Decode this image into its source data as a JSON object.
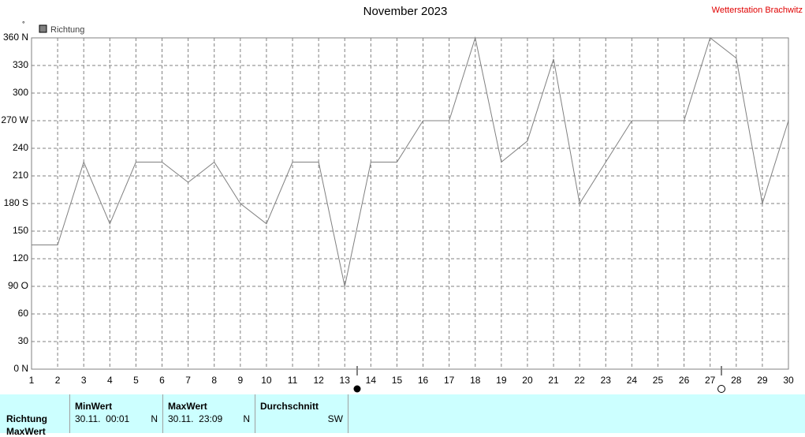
{
  "chart_data": {
    "type": "line",
    "title": "November 2023",
    "source": "Wetterstation Brachwitz",
    "y_unit": "°",
    "x": [
      1,
      2,
      3,
      4,
      5,
      6,
      7,
      8,
      9,
      10,
      11,
      12,
      13,
      14,
      15,
      16,
      17,
      18,
      19,
      20,
      21,
      22,
      23,
      24,
      25,
      26,
      27,
      28,
      29,
      30
    ],
    "series": [
      {
        "name": "Richtung",
        "color": "#808080",
        "values": [
          135,
          135,
          225,
          158,
          225,
          225,
          203,
          225,
          180,
          158,
          225,
          225,
          90,
          225,
          225,
          270,
          270,
          360,
          225,
          248,
          337,
          180,
          225,
          270,
          270,
          270,
          360,
          338,
          180,
          270
        ]
      }
    ],
    "xlim": [
      1,
      30
    ],
    "xticks": [
      1,
      2,
      3,
      4,
      5,
      6,
      7,
      8,
      9,
      10,
      11,
      12,
      13,
      14,
      15,
      16,
      17,
      18,
      19,
      20,
      21,
      22,
      23,
      24,
      25,
      26,
      27,
      28,
      29,
      30
    ],
    "ylim": [
      0,
      360
    ],
    "yticks": [
      {
        "value": 0,
        "label": "0 N"
      },
      30,
      60,
      {
        "value": 90,
        "label": "90 O"
      },
      120,
      150,
      {
        "value": 180,
        "label": "180 S"
      },
      210,
      240,
      {
        "value": 270,
        "label": "270 W"
      },
      300,
      330,
      {
        "value": 360,
        "label": "360 N"
      }
    ],
    "grid": true,
    "legend": "top-left"
  },
  "table": {
    "headers": [
      "MinWert",
      "MaxWert",
      "Durchschnitt"
    ],
    "rows": [
      {
        "label": "Richtung",
        "min_time": "30.11.  00:01",
        "min_value": "N",
        "max_time": "30.11.  23:09",
        "max_value": "N",
        "average": "SW"
      },
      {
        "label": "MaxWert"
      }
    ]
  }
}
